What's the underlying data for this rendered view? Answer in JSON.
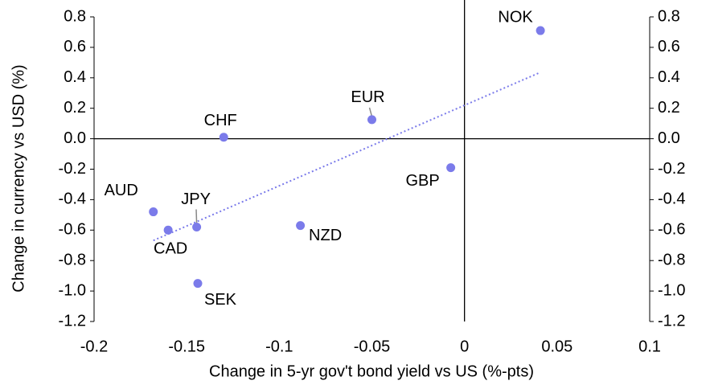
{
  "chart_data": {
    "type": "scatter",
    "x_label": "Change in 5-yr gov't bond yield vs US (%-pts)",
    "y_label": "Change in currency vs USD (%)",
    "series": [
      {
        "color": "#7b7bea",
        "labels": [
          "NOK",
          "EUR",
          "CHF",
          "GBP",
          "NZD",
          "AUD",
          "JPY",
          "CAD",
          "SEK"
        ],
        "x": [
          0.041,
          -0.05,
          -0.13,
          -0.0074,
          -0.0886,
          -0.168,
          -0.1446,
          -0.16,
          -0.144
        ],
        "values": [
          0.71,
          0.125,
          0.01,
          -0.19,
          -0.57,
          -0.48,
          -0.58,
          -0.6,
          -0.95
        ]
      }
    ],
    "trendline": true,
    "xlim": [
      -0.2,
      0.1
    ],
    "xticks": [
      -0.2,
      -0.15,
      -0.1,
      -0.05,
      0,
      0.05,
      0.1
    ],
    "ylim": [
      -1.2,
      0.8
    ],
    "yticks": [
      {
        "value": -1.2,
        "label": "-1.2"
      },
      {
        "value": -1.0,
        "label": "-1.0"
      },
      {
        "value": -0.8,
        "label": "-0.8"
      },
      {
        "value": -0.6,
        "label": "-0.6"
      },
      {
        "value": -0.4,
        "label": "-0.4"
      },
      {
        "value": -0.2,
        "label": "-0.2"
      },
      {
        "value": 0,
        "label": "0.0"
      },
      {
        "value": 0.2,
        "label": "0.2"
      },
      {
        "value": 0.4,
        "label": "0.4"
      },
      {
        "value": 0.6,
        "label": "0.6"
      },
      {
        "value": 0.8,
        "label": "0.8"
      }
    ]
  }
}
